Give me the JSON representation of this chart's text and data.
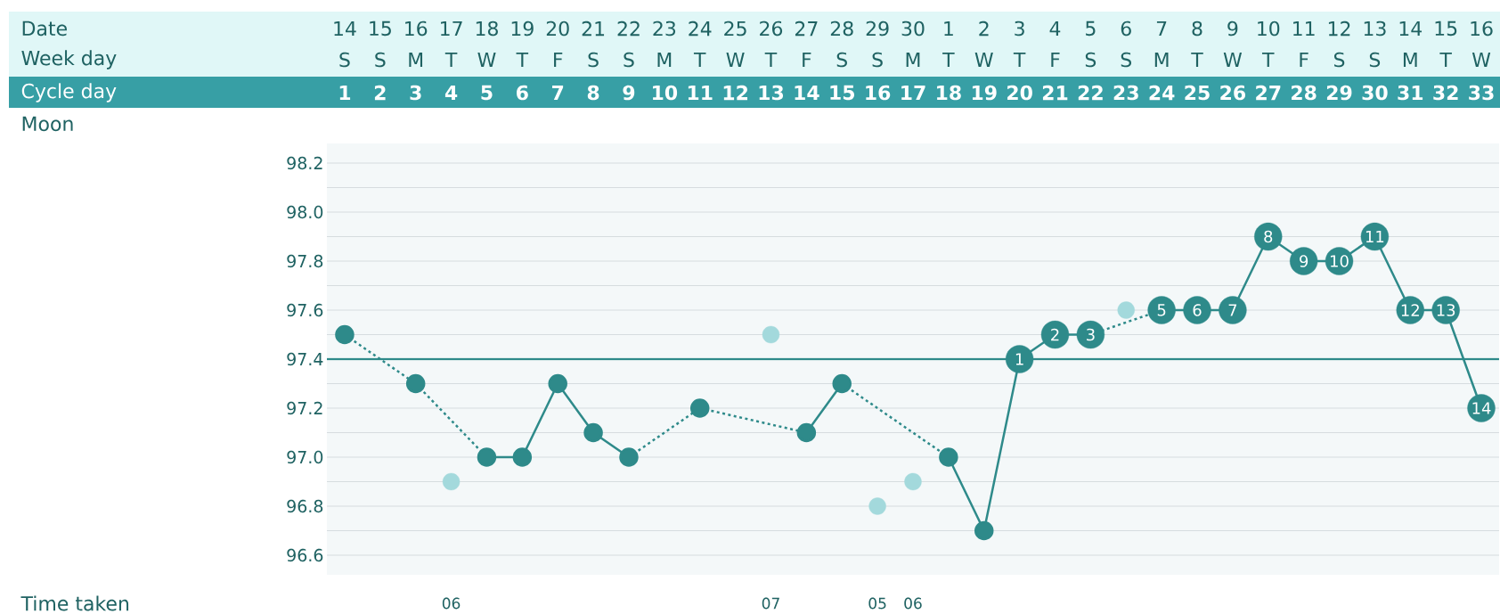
{
  "chart_data": {
    "type": "line",
    "categories": [
      "1",
      "2",
      "3",
      "4",
      "5",
      "6",
      "7",
      "8",
      "9",
      "10",
      "11",
      "12",
      "13",
      "14",
      "15",
      "16",
      "17",
      "18",
      "19",
      "20",
      "21",
      "22",
      "23",
      "24",
      "25",
      "26",
      "27",
      "28",
      "29",
      "30",
      "31",
      "32",
      "33"
    ],
    "series": [
      {
        "color": "#2e8a8a",
        "line_style": "solid",
        "values": [
          97.5,
          null,
          97.3,
          null,
          97.0,
          97.0,
          97.3,
          97.1,
          97.0,
          null,
          97.2,
          null,
          null,
          97.1,
          97.3,
          null,
          null,
          97.0,
          96.7,
          97.4,
          97.5,
          97.5,
          null,
          97.6,
          97.6,
          97.6,
          97.9,
          97.8,
          97.8,
          97.9,
          97.6,
          97.6,
          97.2
        ]
      },
      {
        "type": "scatter",
        "color": "#a3d9dc",
        "values": [
          null,
          null,
          null,
          96.9,
          null,
          null,
          null,
          null,
          null,
          null,
          null,
          null,
          97.5,
          null,
          null,
          96.8,
          96.9,
          null,
          null,
          null,
          null,
          null,
          97.6,
          null,
          null,
          null,
          null,
          null,
          null,
          null,
          null,
          null,
          null
        ]
      }
    ],
    "ylim": [
      96.52,
      98.28
    ],
    "yticks": [
      96.6,
      {
        "value": 96.7,
        "label": null
      },
      96.8,
      {
        "value": 96.9,
        "label": null
      },
      {
        "value": 97.0,
        "label": "97.0"
      },
      {
        "value": 97.1,
        "label": null
      },
      97.2,
      {
        "value": 97.3,
        "label": null
      },
      97.4,
      {
        "value": 97.5,
        "label": null
      },
      97.6,
      {
        "value": 97.7,
        "label": null
      },
      97.8,
      {
        "value": 97.9,
        "label": null
      },
      {
        "value": 98.0,
        "label": "98.0"
      },
      {
        "value": 98.1,
        "label": null
      },
      98.2
    ],
    "grid": "y",
    "marker": "circle",
    "ref_lines": [
      {
        "axis": "y",
        "value": 97.4,
        "color": "#2e8a8a"
      }
    ],
    "annotations": [
      "Date",
      "Week day",
      "Cycle day",
      "Moon",
      "Time taken",
      "14",
      "15",
      "16",
      "17",
      "18",
      "19",
      "20",
      "21",
      "22",
      "23",
      "24",
      "25",
      "26",
      "27",
      "28",
      "29",
      "30",
      "1",
      "2",
      "3",
      "4",
      "5",
      "6",
      "7",
      "8",
      "9",
      "10",
      "11",
      "12",
      "13",
      "14",
      "15",
      "16",
      "S",
      "S",
      "M",
      "T",
      "W",
      "T",
      "F",
      "S",
      "S",
      "M",
      "T",
      "W",
      "T",
      "F",
      "S",
      "S",
      "M",
      "T",
      "W",
      "T",
      "F",
      "S",
      "S",
      "M",
      "T",
      "W",
      "T",
      "F",
      "S",
      "S",
      "M",
      "T",
      "W",
      "06",
      "07",
      "05",
      "06",
      {
        "text": "1",
        "x": "20",
        "y": 97.4
      },
      {
        "text": "2",
        "x": "21",
        "y": 97.5
      },
      {
        "text": "3",
        "x": "22",
        "y": 97.5
      },
      {
        "text": "5",
        "x": "24",
        "y": 97.6
      },
      {
        "text": "6",
        "x": "25",
        "y": 97.6
      },
      {
        "text": "7",
        "x": "26",
        "y": 97.6
      },
      {
        "text": "8",
        "x": "27",
        "y": 97.9
      },
      {
        "text": "9",
        "x": "28",
        "y": 97.8
      },
      {
        "text": "10",
        "x": "29",
        "y": 97.8
      },
      {
        "text": "11",
        "x": "30",
        "y": 97.9
      },
      {
        "text": "12",
        "x": "31",
        "y": 97.6
      },
      {
        "text": "13",
        "x": "32",
        "y": 97.6
      },
      {
        "text": "14",
        "x": "33",
        "y": 97.2
      }
    ]
  }
}
